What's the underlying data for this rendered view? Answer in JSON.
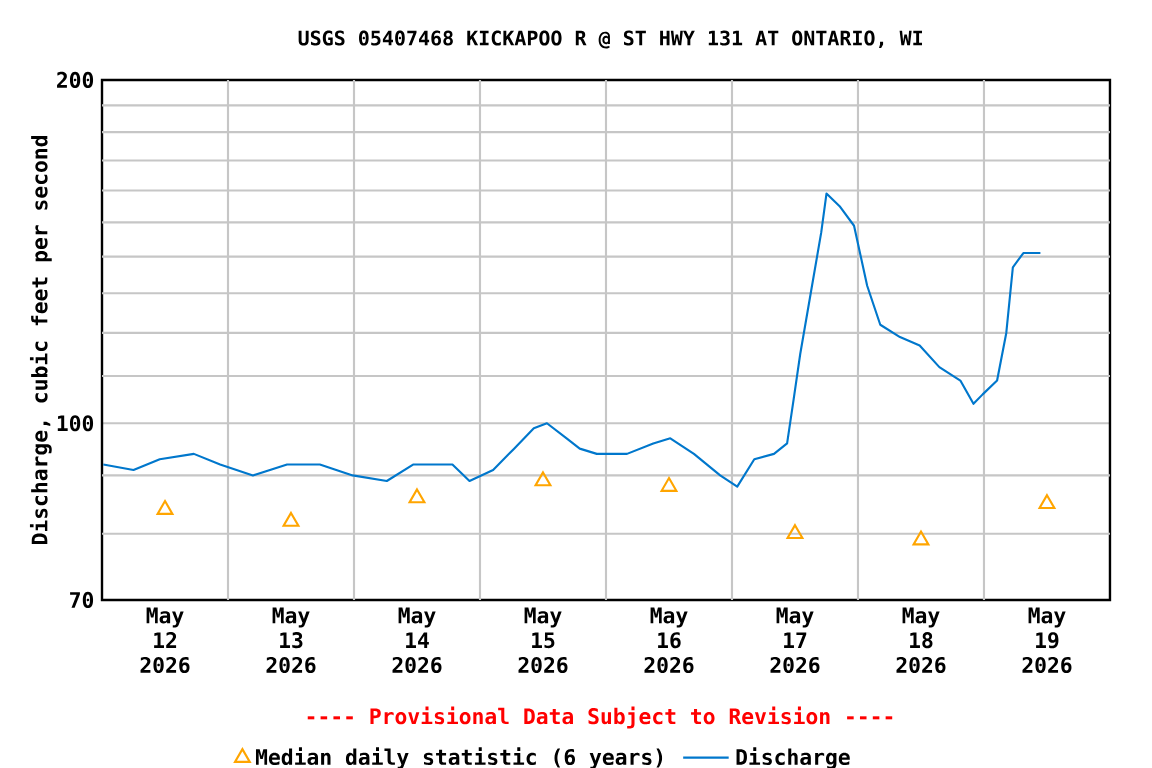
{
  "chart_data": {
    "type": "line",
    "title": "USGS 05407468 KICKAPOO R @ ST HWY 131 AT ONTARIO, WI",
    "ylabel": "Discharge, cubic feet per second",
    "annotations": [
      "---- Provisional Data Subject to Revision ----"
    ],
    "log": "y",
    "xlim": [
      "2026-05-12T00:00",
      "2026-05-20T00:00"
    ],
    "xticks": [
      {
        "value": "2026-05-12T12:00",
        "label": "May 12 2026"
      },
      {
        "value": "2026-05-13T12:00",
        "label": "May 13 2026"
      },
      {
        "value": "2026-05-14T12:00",
        "label": "May 14 2026"
      },
      {
        "value": "2026-05-15T12:00",
        "label": "May 15 2026"
      },
      {
        "value": "2026-05-16T12:00",
        "label": "May 16 2026"
      },
      {
        "value": "2026-05-17T12:00",
        "label": "May 17 2026"
      },
      {
        "value": "2026-05-18T12:00",
        "label": "May 18 2026"
      },
      {
        "value": "2026-05-19T12:00",
        "label": "May 19 2026"
      },
      {
        "value": "2026-05-13T00:00",
        "label": null
      },
      {
        "value": "2026-05-14T00:00",
        "label": null
      },
      {
        "value": "2026-05-15T00:00",
        "label": null
      },
      {
        "value": "2026-05-16T00:00",
        "label": null
      },
      {
        "value": "2026-05-17T00:00",
        "label": null
      },
      {
        "value": "2026-05-18T00:00",
        "label": null
      },
      {
        "value": "2026-05-19T00:00",
        "label": null
      }
    ],
    "ylim": [
      70,
      200
    ],
    "yticks": [
      70,
      {
        "value": 80,
        "label": null
      },
      {
        "value": 90,
        "label": null
      },
      100,
      {
        "value": 110,
        "label": null
      },
      {
        "value": 120,
        "label": null
      },
      {
        "value": 130,
        "label": null
      },
      {
        "value": 140,
        "label": null
      },
      {
        "value": 150,
        "label": null
      },
      {
        "value": 160,
        "label": null
      },
      {
        "value": 170,
        "label": null
      },
      {
        "value": 180,
        "label": null
      },
      {
        "value": 190,
        "label": null
      },
      200
    ],
    "grid": true,
    "legend": "bottom",
    "series": [
      {
        "name": "Median daily statistic (6 years)",
        "type": "scatter",
        "marker": "triangle",
        "color": "#ffa500",
        "x": [
          "2026-05-12T12:00",
          "2026-05-13T12:00",
          "2026-05-14T12:00",
          "2026-05-15T12:00",
          "2026-05-16T12:00",
          "2026-05-17T12:00",
          "2026-05-18T12:00",
          "2026-05-19T12:00"
        ],
        "values": [
          84,
          82,
          86,
          89,
          88,
          80,
          79,
          85
        ]
      },
      {
        "name": "Discharge",
        "marker": "none",
        "line_style": "solid",
        "color": "#0077cc",
        "x": [
          "2026-05-12T00:15",
          "2026-05-12T06:00",
          "2026-05-12T11:00",
          "2026-05-12T17:30",
          "2026-05-12T22:30",
          "2026-05-13T04:45",
          "2026-05-13T11:15",
          "2026-05-13T17:30",
          "2026-05-13T23:45",
          "2026-05-14T06:15",
          "2026-05-14T11:15",
          "2026-05-14T18:45",
          "2026-05-14T22:00",
          "2026-05-15T02:30",
          "2026-05-15T06:30",
          "2026-05-15T10:15",
          "2026-05-15T12:45",
          "2026-05-15T16:30",
          "2026-05-15T19:00",
          "2026-05-15T22:15",
          "2026-05-16T04:00",
          "2026-05-16T09:00",
          "2026-05-16T12:15",
          "2026-05-16T16:45",
          "2026-05-16T21:45",
          "2026-05-17T01:00",
          "2026-05-17T04:15",
          "2026-05-17T08:00",
          "2026-05-17T10:30",
          "2026-05-17T11:45",
          "2026-05-17T13:00",
          "2026-05-17T15:00",
          "2026-05-17T17:00",
          "2026-05-17T18:00",
          "2026-05-17T20:30",
          "2026-05-17T23:15",
          "2026-05-18T01:45",
          "2026-05-18T04:15",
          "2026-05-18T08:00",
          "2026-05-18T11:45",
          "2026-05-18T15:30",
          "2026-05-18T19:30",
          "2026-05-18T22:00",
          "2026-05-18T23:45",
          "2026-05-19T02:30",
          "2026-05-19T04:15",
          "2026-05-19T05:30",
          "2026-05-19T07:30",
          "2026-05-19T10:45"
        ],
        "values": [
          92,
          91,
          93,
          94,
          92,
          90,
          92,
          92,
          90,
          89,
          92,
          92,
          89,
          91,
          95,
          99,
          100,
          97,
          95,
          94,
          94,
          96,
          97,
          94,
          90,
          88,
          93,
          94,
          96,
          105,
          115,
          130,
          147,
          159,
          155,
          149,
          132,
          122,
          119,
          117,
          112,
          109,
          104,
          106,
          109,
          120,
          137,
          141,
          141
        ]
      }
    ]
  }
}
